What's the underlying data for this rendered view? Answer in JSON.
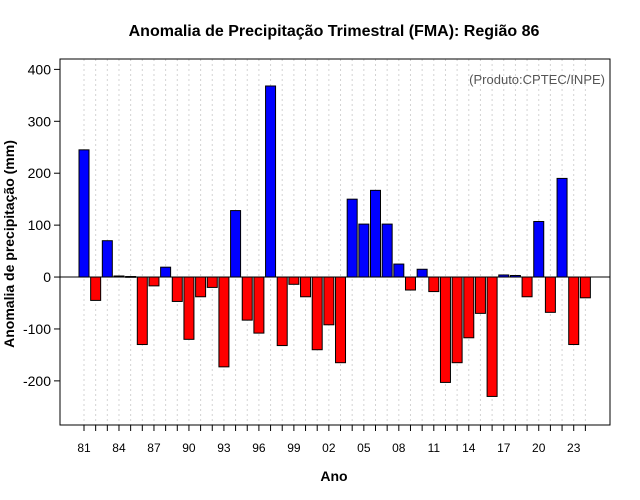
{
  "chart_data": {
    "type": "bar",
    "title": "Anomalia de Precipitação Trimestral (FMA): Região 86",
    "xlabel": "Ano",
    "ylabel": "Anomalia de precipitação (mm)",
    "annotation": "(Produto:CPTEC/INPE)",
    "ylim": [
      -285,
      420
    ],
    "yticks": [
      -200,
      -100,
      0,
      100,
      200,
      300,
      400
    ],
    "positive_color": "#0000ff",
    "negative_color": "#ff0000",
    "xtick_labels": [
      "81",
      "84",
      "87",
      "90",
      "93",
      "96",
      "99",
      "02",
      "05",
      "08",
      "11",
      "14",
      "17",
      "20",
      "23"
    ],
    "categories": [
      "1981",
      "1982",
      "1983",
      "1984",
      "1985",
      "1986",
      "1987",
      "1988",
      "1989",
      "1990",
      "1991",
      "1992",
      "1993",
      "1994",
      "1995",
      "1996",
      "1997",
      "1998",
      "1999",
      "2000",
      "2001",
      "2002",
      "2003",
      "2004",
      "2005",
      "2006",
      "2007",
      "2008",
      "2009",
      "2010",
      "2011",
      "2012",
      "2013",
      "2014",
      "2015",
      "2016",
      "2017",
      "2018",
      "2019",
      "2020",
      "2021",
      "2022",
      "2023",
      "2024"
    ],
    "values": [
      245,
      -45,
      70,
      2,
      1,
      -130,
      -17,
      19,
      -47,
      -120,
      -38,
      -20,
      -173,
      128,
      -83,
      -108,
      368,
      -132,
      -14,
      -38,
      -140,
      -92,
      -165,
      150,
      102,
      167,
      102,
      25,
      -25,
      15,
      -28,
      -203,
      -165,
      -117,
      -70,
      -230,
      4,
      3,
      -38,
      107,
      -68,
      190,
      -130,
      -40
    ]
  }
}
